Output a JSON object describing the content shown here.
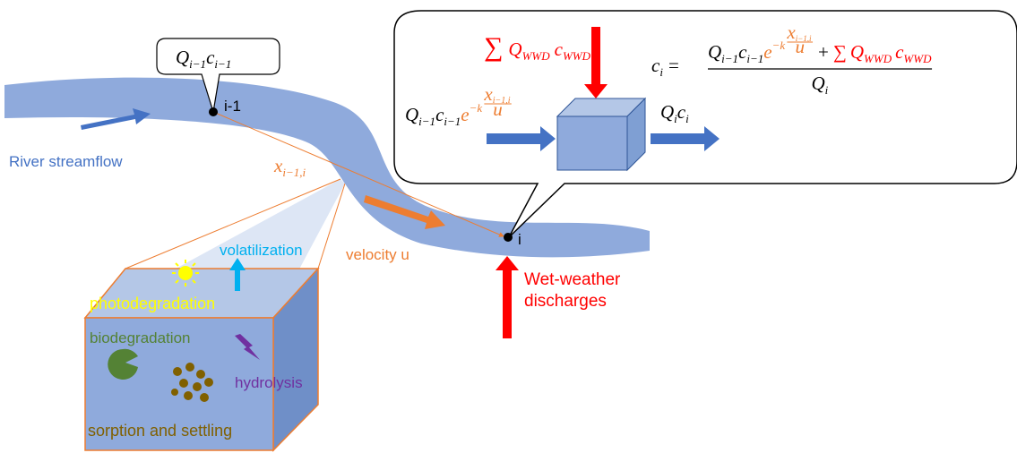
{
  "labels": {
    "node_prev": "i-1",
    "node_cur": "i",
    "streamflow": "River streamflow",
    "velocity": "velocity u",
    "discharges": [
      "Wet-weather",
      "discharges"
    ],
    "volatilization": "volatilization",
    "photodegradation": "photodegradation",
    "biodegradation": "biodegradation",
    "hydrolysis": "hydrolysis",
    "sorption": "sorption and settling"
  },
  "math": {
    "callout": [
      "Q",
      "i−1",
      "c",
      "i−1"
    ],
    "distance": [
      "x",
      "i−1,i"
    ],
    "inflow": [
      "Q",
      "i−1",
      "c",
      "i−1",
      "e",
      "−k",
      "x",
      "i−1,i",
      "u"
    ],
    "wwd": [
      "∑",
      "Q",
      "WWD",
      "c",
      "WWD"
    ],
    "outflow": [
      "Q",
      "i",
      "c",
      "i"
    ],
    "equation": [
      "c",
      "i",
      "=",
      "Q",
      "i−1",
      "c",
      "i−1",
      "e",
      "−k",
      "x",
      "i−1,i",
      "u",
      "+",
      "∑",
      "Q",
      "WWD",
      "c",
      "WWD",
      "Q",
      "i"
    ]
  }
}
